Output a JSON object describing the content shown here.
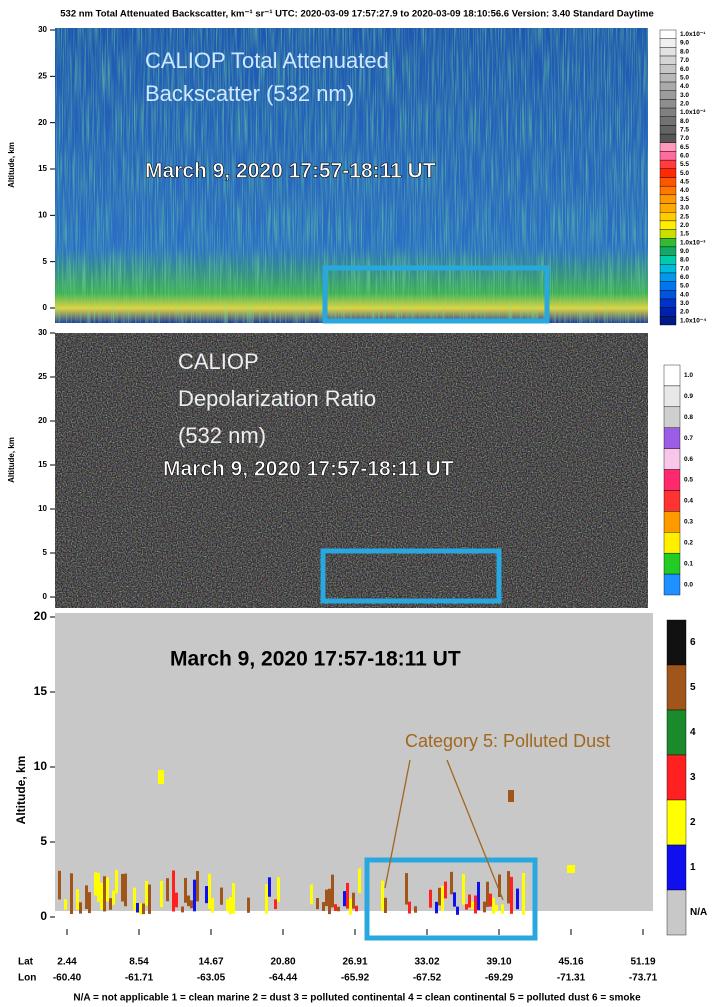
{
  "header": "532 nm Total Attenuated Backscatter, km⁻¹ sr⁻¹   UTC: 2020-03-09 17:57:27.9  to  2020-03-09 18:10:56.6   Version: 3.40  Standard  Daytime",
  "panels": [
    {
      "title_lines": [
        "CALIOP Total Attenuated",
        "Backscatter (532 nm)"
      ],
      "date": "March 9, 2020 17:57-18:11 UT",
      "y_label": "Altitude, km",
      "yticks": [
        "30",
        "25",
        "20",
        "15",
        "10",
        "5",
        "0"
      ],
      "colorbar": [
        "1.0x10⁻¹",
        "9.0",
        "8.0",
        "7.0",
        "6.0",
        "5.0",
        "4.0",
        "3.0",
        "2.0",
        "1.0x10⁻²",
        "8.0",
        "7.5",
        "7.0",
        "6.5",
        "6.0",
        "5.5",
        "5.0",
        "4.5",
        "4.0",
        "3.5",
        "3.0",
        "2.5",
        "2.0",
        "1.5",
        "1.0x10⁻³",
        "9.0",
        "8.0",
        "7.0",
        "6.0",
        "5.0",
        "4.0",
        "3.0",
        "2.0",
        "1.0x10⁻⁴"
      ]
    },
    {
      "title_lines": [
        "CALIOP",
        "Depolarization Ratio",
        "(532 nm)"
      ],
      "date": "March 9, 2020 17:57-18:11 UT",
      "y_label": "Altitude, km",
      "yticks": [
        "30",
        "25",
        "20",
        "15",
        "10",
        "5",
        "0"
      ],
      "colorbar": [
        "1.0",
        "0.9",
        "0.8",
        "0.7",
        "0.6",
        "0.5",
        "0.4",
        "0.3",
        "0.2",
        "0.1",
        "0.0"
      ]
    },
    {
      "title_lines": [],
      "date": "March 9, 2020 17:57-18:11 UT",
      "y_label": "Altitude, km",
      "yticks": [
        "20",
        "15",
        "10",
        "5",
        "0"
      ],
      "colorbar": [
        "6",
        "5",
        "4",
        "3",
        "2",
        "1",
        "N/A"
      ]
    }
  ],
  "annotation": "Category 5: Polluted Dust",
  "lat_label": "Lat",
  "lon_label": "Lon",
  "lat": [
    "2.44",
    "8.54",
    "14.67",
    "20.80",
    "26.91",
    "33.02",
    "39.10",
    "45.16",
    "51.19"
  ],
  "lon": [
    "-60.40",
    "-61.71",
    "-63.05",
    "-64.44",
    "-65.92",
    "-67.52",
    "-69.29",
    "-71.31",
    "-73.71"
  ],
  "legend": "N/A = not applicable    1 = clean marine    2 = dust    3 = polluted continental    4 = clean continental    5 = polluted dust    6 = smoke"
}
